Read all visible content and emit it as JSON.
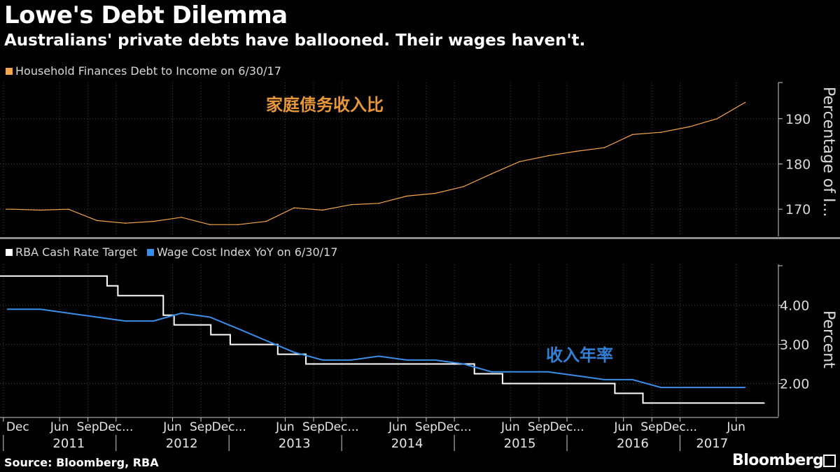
{
  "header": {
    "title": "Lowe's Debt Dilemma",
    "subtitle": "Australians' private debts have ballooned. Their wages haven't."
  },
  "footer": {
    "source": "Source: Bloomberg, RBA",
    "brand": "Bloomberg"
  },
  "colors": {
    "debt": "#f5a54a",
    "cash": "#ffffff",
    "wage": "#3b8ee8",
    "annotation_debt": "#e8963a",
    "annotation_wage": "#2f80d6"
  },
  "chart_data": [
    {
      "type": "line",
      "legend": [
        "Household Finances Debt to Income on 6/30/17"
      ],
      "annotation": "家庭债务收入比",
      "ylabel": "Percentage of I...",
      "yticks": [
        170,
        180,
        190
      ],
      "ylim": [
        164,
        198
      ],
      "xlim": [
        "2010-11-20",
        "2017-09-30"
      ],
      "series": [
        {
          "name": "Household Finances Debt to Income",
          "x": [
            "2010-12-31",
            "2011-03-31",
            "2011-06-30",
            "2011-09-30",
            "2011-12-31",
            "2012-03-31",
            "2012-06-30",
            "2012-09-30",
            "2012-12-31",
            "2013-03-31",
            "2013-06-30",
            "2013-09-30",
            "2013-12-31",
            "2014-03-31",
            "2014-06-30",
            "2014-09-30",
            "2014-12-31",
            "2015-03-31",
            "2015-06-30",
            "2015-09-30",
            "2015-12-31",
            "2016-03-31",
            "2016-06-30",
            "2016-09-30",
            "2016-12-31",
            "2017-03-31",
            "2017-06-30"
          ],
          "values": [
            170.0,
            169.8,
            170.0,
            167.5,
            166.9,
            167.3,
            168.2,
            166.6,
            166.6,
            167.3,
            170.3,
            169.8,
            171.0,
            171.3,
            172.9,
            173.5,
            175.0,
            177.8,
            180.5,
            181.8,
            182.8,
            183.6,
            186.5,
            187.0,
            188.2,
            190.0,
            193.6
          ]
        }
      ]
    },
    {
      "type": "line",
      "legend": [
        "RBA Cash Rate Target",
        "Wage Cost Index YoY on 6/30/17"
      ],
      "annotation": "收入年率",
      "ylabel": "Percent",
      "yticks": [
        "2.00",
        "3.00",
        "4.00"
      ],
      "ylim": [
        1.15,
        5.05
      ],
      "xlim": [
        "2010-11-20",
        "2017-09-30"
      ],
      "xticks": [
        "Dec",
        "Jun",
        "Sep",
        "Dec...",
        "Jun",
        "Sep",
        "Dec...",
        "Jun",
        "Sep",
        "Dec...",
        "Jun",
        "Sep",
        "Dec...",
        "Jun",
        "Sep",
        "Dec...",
        "Jun",
        "Sep",
        "Dec...",
        "Jun"
      ],
      "xtick_dates": [
        "2010-12-01",
        "2011-06-01",
        "2011-09-01",
        "2011-12-01",
        "2012-06-01",
        "2012-09-01",
        "2012-12-01",
        "2013-06-01",
        "2013-09-01",
        "2013-12-01",
        "2014-06-01",
        "2014-09-01",
        "2014-12-01",
        "2015-06-01",
        "2015-09-01",
        "2015-12-01",
        "2016-06-01",
        "2016-09-01",
        "2016-12-01",
        "2017-06-01"
      ],
      "years": [
        "2011",
        "2012",
        "2013",
        "2014",
        "2015",
        "2016",
        "2017"
      ],
      "year_dates": [
        "2011-07-01",
        "2012-07-01",
        "2013-07-01",
        "2014-07-01",
        "2015-07-01",
        "2016-07-01",
        "2017-03-15"
      ],
      "year_separators": [
        "2010-12-01",
        "2011-12-01",
        "2012-12-01",
        "2013-12-01",
        "2014-12-01",
        "2015-12-01",
        "2016-12-01"
      ],
      "series": [
        {
          "name": "RBA Cash Rate Target",
          "step": true,
          "x": [
            "2010-11-20",
            "2011-11-02",
            "2011-12-07",
            "2012-05-02",
            "2012-06-06",
            "2012-10-03",
            "2012-12-05",
            "2013-05-08",
            "2013-08-07",
            "2015-02-04",
            "2015-05-06",
            "2016-05-04",
            "2016-08-03",
            "2017-08-31"
          ],
          "values": [
            4.75,
            4.5,
            4.25,
            3.75,
            3.5,
            3.25,
            3.0,
            2.75,
            2.5,
            2.25,
            2.0,
            1.75,
            1.5,
            1.5
          ]
        },
        {
          "name": "Wage Cost Index YoY",
          "x": [
            "2010-12-31",
            "2011-03-31",
            "2011-06-30",
            "2011-09-30",
            "2011-12-31",
            "2012-03-31",
            "2012-06-30",
            "2012-09-30",
            "2012-12-31",
            "2013-03-31",
            "2013-06-30",
            "2013-09-30",
            "2013-12-31",
            "2014-03-31",
            "2014-06-30",
            "2014-09-30",
            "2014-12-31",
            "2015-03-31",
            "2015-06-30",
            "2015-09-30",
            "2015-12-31",
            "2016-03-31",
            "2016-06-30",
            "2016-09-30",
            "2016-12-31",
            "2017-03-31",
            "2017-06-30"
          ],
          "values": [
            3.9,
            3.9,
            3.8,
            3.7,
            3.6,
            3.6,
            3.8,
            3.7,
            3.4,
            3.1,
            2.8,
            2.6,
            2.6,
            2.7,
            2.6,
            2.6,
            2.5,
            2.3,
            2.3,
            2.3,
            2.2,
            2.1,
            2.1,
            1.9,
            1.9,
            1.9,
            1.9
          ]
        }
      ]
    }
  ]
}
